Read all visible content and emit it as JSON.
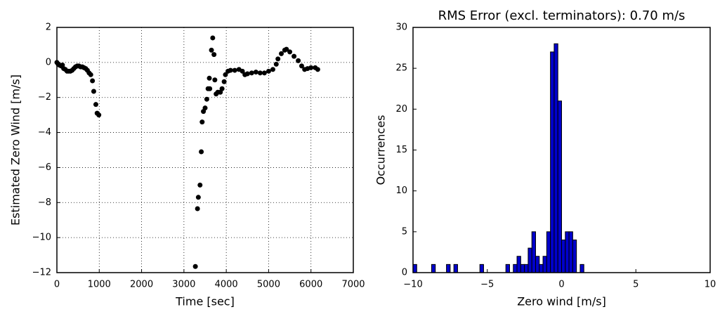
{
  "chart_data": [
    {
      "type": "scatter",
      "xlabel": "Time [sec]",
      "ylabel": "Estimated Zero Wind [m/s]",
      "color": "#000000",
      "grid": true,
      "xlim": [
        0,
        7000
      ],
      "ylim": [
        -12,
        2
      ],
      "xticks": [
        0,
        1000,
        2000,
        3000,
        4000,
        5000,
        6000,
        7000
      ],
      "yticks": [
        {
          "value": -12,
          "label": "−12"
        },
        {
          "value": -10,
          "label": "−10"
        },
        {
          "value": -8,
          "label": "−8"
        },
        {
          "value": -6,
          "label": "−6"
        },
        {
          "value": -4,
          "label": "−4"
        },
        {
          "value": -2,
          "label": "−2"
        },
        0,
        2
      ],
      "x": [
        0,
        30,
        60,
        100,
        130,
        160,
        200,
        240,
        280,
        320,
        360,
        400,
        440,
        480,
        520,
        560,
        600,
        640,
        680,
        720,
        760,
        800,
        840,
        870,
        920,
        950,
        990,
        3270,
        3320,
        3340,
        3380,
        3410,
        3430,
        3460,
        3500,
        3540,
        3570,
        3610,
        3600,
        3650,
        3680,
        3710,
        3730,
        3760,
        3800,
        3860,
        3900,
        3950,
        3980,
        4040,
        4100,
        4200,
        4300,
        4380,
        4440,
        4500,
        4600,
        4700,
        4800,
        4900,
        5000,
        5100,
        5180,
        5220,
        5300,
        5380,
        5420,
        5500,
        5600,
        5700,
        5780,
        5850,
        5920,
        6000,
        6100,
        6160
      ],
      "values": [
        0,
        -0.1,
        -0.15,
        -0.2,
        -0.15,
        -0.35,
        -0.4,
        -0.5,
        -0.5,
        -0.5,
        -0.45,
        -0.35,
        -0.25,
        -0.2,
        -0.2,
        -0.25,
        -0.25,
        -0.3,
        -0.35,
        -0.45,
        -0.6,
        -0.7,
        -1.05,
        -1.65,
        -2.4,
        -2.9,
        -3.0,
        -11.65,
        -8.35,
        -7.7,
        -7.0,
        -5.1,
        -3.4,
        -2.8,
        -2.6,
        -2.1,
        -1.5,
        -1.5,
        -0.9,
        0.7,
        1.4,
        0.45,
        -1.0,
        -1.8,
        -1.7,
        -1.7,
        -1.5,
        -1.1,
        -0.7,
        -0.5,
        -0.45,
        -0.45,
        -0.4,
        -0.5,
        -0.7,
        -0.65,
        -0.6,
        -0.55,
        -0.6,
        -0.6,
        -0.5,
        -0.4,
        -0.1,
        0.2,
        0.5,
        0.7,
        0.75,
        0.6,
        0.35,
        0.1,
        -0.2,
        -0.4,
        -0.35,
        -0.3,
        -0.3,
        -0.4
      ]
    },
    {
      "type": "histogram",
      "title": "RMS Error (excl. terminators): 0.70 m/s",
      "xlabel": "Zero wind [m/s]",
      "ylabel": "Occurrences",
      "color": "#0000cc",
      "grid": false,
      "xlim": [
        -10,
        10
      ],
      "ylim": [
        0,
        30
      ],
      "xticks": [
        {
          "value": -10,
          "label": "−10"
        },
        {
          "value": -5,
          "label": "−5"
        },
        0,
        5,
        10
      ],
      "yticks": [
        0,
        5,
        10,
        15,
        20,
        25,
        30
      ],
      "bins": [
        -10,
        -9.75,
        -9.5,
        -9.25,
        -9,
        -8.75,
        -8.5,
        -8.25,
        -8,
        -7.75,
        -7.5,
        -7.25,
        -7,
        -6.75,
        -6.5,
        -6.25,
        -6,
        -5.75,
        -5.5,
        -5.25,
        -5,
        -4.75,
        -4.5,
        -4.25,
        -4,
        -3.75,
        -3.5,
        -3.25,
        -3,
        -2.75,
        -2.5,
        -2.25,
        -2,
        -1.75,
        -1.5,
        -1.25,
        -1,
        -0.75,
        -0.5,
        -0.25,
        0,
        0.25,
        0.5,
        0.75,
        1,
        1.25,
        1.5,
        1.75,
        2,
        2.25,
        2.5,
        2.75,
        3,
        3.25,
        3.5,
        3.75,
        4,
        4.25,
        4.5,
        4.75,
        5,
        5.25,
        5.5,
        5.75,
        6,
        6.25,
        6.5,
        6.75,
        7,
        7.25,
        7.5,
        7.75,
        8,
        8.25,
        8.5,
        8.75,
        9,
        9.25,
        9.5,
        9.75,
        10
      ],
      "values": [
        1,
        0,
        0,
        0,
        0,
        1,
        0,
        0,
        0,
        1,
        0,
        1,
        0,
        0,
        0,
        0,
        0,
        0,
        1,
        0,
        0,
        0,
        0,
        0,
        0,
        1,
        0,
        1,
        2,
        1,
        1,
        3,
        5,
        2,
        1,
        2,
        5,
        27,
        28,
        21,
        4,
        5,
        5,
        4,
        0,
        1,
        0,
        0,
        0,
        0,
        0,
        0,
        0,
        0,
        0,
        0,
        0,
        0,
        0,
        0,
        0,
        0,
        0,
        0,
        0,
        0,
        0,
        0,
        0,
        0,
        0,
        0,
        0,
        0,
        0,
        0,
        0,
        0,
        0,
        0
      ]
    }
  ]
}
